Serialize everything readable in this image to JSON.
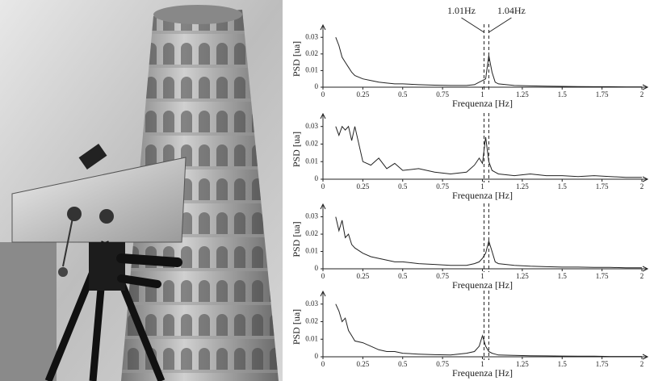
{
  "chart_data": [
    {
      "type": "line",
      "color": "#222",
      "xlim": [
        0,
        2
      ],
      "ylim": [
        0,
        0.034
      ],
      "xticks": [
        0,
        0.25,
        0.5,
        0.75,
        1,
        1.25,
        1.5,
        1.75,
        2
      ],
      "yticks": [
        0,
        0.01,
        0.02,
        0.03
      ],
      "xlabel": "Frequenza [Hz]",
      "ylabel": "PSD [ua]",
      "vlines": [
        1.01,
        1.04
      ],
      "annotations": [
        {
          "text": "1.01Hz",
          "x": 1.01
        },
        {
          "text": "1.04Hz",
          "x": 1.04
        }
      ],
      "x": [
        0.08,
        0.1,
        0.12,
        0.14,
        0.16,
        0.18,
        0.2,
        0.25,
        0.3,
        0.35,
        0.4,
        0.45,
        0.5,
        0.6,
        0.7,
        0.8,
        0.9,
        0.95,
        0.98,
        1.0,
        1.02,
        1.04,
        1.06,
        1.08,
        1.1,
        1.2,
        1.3,
        1.4,
        1.5,
        1.6,
        1.7,
        1.8,
        1.9,
        2
      ],
      "values": [
        0.03,
        0.025,
        0.018,
        0.015,
        0.012,
        0.009,
        0.007,
        0.005,
        0.004,
        0.003,
        0.0025,
        0.002,
        0.002,
        0.0015,
        0.0012,
        0.001,
        0.001,
        0.0015,
        0.003,
        0.004,
        0.005,
        0.019,
        0.009,
        0.003,
        0.002,
        0.001,
        0.0008,
        0.0006,
        0.0005,
        0.0004,
        0.0003,
        0.0003,
        0.0002,
        0.0002
      ]
    },
    {
      "type": "line",
      "color": "#222",
      "xlim": [
        0,
        2
      ],
      "ylim": [
        0,
        0.034
      ],
      "xticks": [
        0,
        0.25,
        0.5,
        0.75,
        1,
        1.25,
        1.5,
        1.75,
        2
      ],
      "yticks": [
        0,
        0.01,
        0.02,
        0.03
      ],
      "xlabel": "Frequenza [Hz]",
      "ylabel": "PSD [ua]",
      "vlines": [
        1.01,
        1.04
      ],
      "x": [
        0.08,
        0.1,
        0.12,
        0.14,
        0.16,
        0.18,
        0.2,
        0.25,
        0.3,
        0.35,
        0.4,
        0.45,
        0.5,
        0.6,
        0.7,
        0.8,
        0.9,
        0.95,
        0.98,
        1.0,
        1.02,
        1.04,
        1.06,
        1.08,
        1.1,
        1.2,
        1.3,
        1.4,
        1.5,
        1.6,
        1.7,
        1.8,
        1.9,
        2
      ],
      "values": [
        0.03,
        0.025,
        0.03,
        0.028,
        0.03,
        0.022,
        0.03,
        0.01,
        0.008,
        0.012,
        0.006,
        0.009,
        0.005,
        0.006,
        0.004,
        0.003,
        0.004,
        0.008,
        0.012,
        0.009,
        0.024,
        0.01,
        0.005,
        0.004,
        0.003,
        0.002,
        0.003,
        0.002,
        0.002,
        0.0015,
        0.002,
        0.0015,
        0.001,
        0.001
      ]
    },
    {
      "type": "line",
      "color": "#222",
      "xlim": [
        0,
        2
      ],
      "ylim": [
        0,
        0.034
      ],
      "xticks": [
        0,
        0.25,
        0.5,
        0.75,
        1,
        1.25,
        1.5,
        1.75,
        2
      ],
      "yticks": [
        0,
        0.01,
        0.02,
        0.03
      ],
      "xlabel": "Frequenza [Hz]",
      "ylabel": "PSD [ua]",
      "vlines": [
        1.01,
        1.04
      ],
      "x": [
        0.08,
        0.1,
        0.12,
        0.14,
        0.16,
        0.18,
        0.2,
        0.25,
        0.3,
        0.35,
        0.4,
        0.45,
        0.5,
        0.6,
        0.7,
        0.8,
        0.9,
        0.95,
        0.98,
        1.0,
        1.02,
        1.04,
        1.06,
        1.08,
        1.1,
        1.2,
        1.3,
        1.4,
        1.5,
        1.6,
        1.7,
        1.8,
        1.9,
        2
      ],
      "values": [
        0.03,
        0.022,
        0.028,
        0.018,
        0.02,
        0.014,
        0.012,
        0.009,
        0.007,
        0.006,
        0.005,
        0.004,
        0.004,
        0.003,
        0.0025,
        0.002,
        0.002,
        0.003,
        0.004,
        0.006,
        0.009,
        0.016,
        0.01,
        0.004,
        0.003,
        0.002,
        0.0015,
        0.0012,
        0.001,
        0.001,
        0.0008,
        0.0008,
        0.0006,
        0.0006
      ]
    },
    {
      "type": "line",
      "color": "#222",
      "xlim": [
        0,
        2
      ],
      "ylim": [
        0,
        0.034
      ],
      "xticks": [
        0,
        0.25,
        0.5,
        0.75,
        1,
        1.25,
        1.5,
        1.75,
        2
      ],
      "yticks": [
        0,
        0.01,
        0.02,
        0.03
      ],
      "xlabel": "Frequenza [Hz]",
      "ylabel": "PSD [ua]",
      "vlines": [
        1.01,
        1.04
      ],
      "x": [
        0.08,
        0.1,
        0.12,
        0.14,
        0.16,
        0.18,
        0.2,
        0.25,
        0.3,
        0.35,
        0.4,
        0.45,
        0.5,
        0.6,
        0.7,
        0.8,
        0.9,
        0.95,
        0.98,
        1.0,
        1.02,
        1.04,
        1.06,
        1.08,
        1.1,
        1.2,
        1.3,
        1.4,
        1.5,
        1.6,
        1.7,
        1.8,
        1.9,
        2
      ],
      "values": [
        0.03,
        0.026,
        0.02,
        0.022,
        0.015,
        0.012,
        0.009,
        0.008,
        0.006,
        0.004,
        0.003,
        0.003,
        0.002,
        0.0015,
        0.0012,
        0.001,
        0.002,
        0.003,
        0.006,
        0.012,
        0.006,
        0.003,
        0.002,
        0.0015,
        0.001,
        0.0008,
        0.0006,
        0.0005,
        0.0004,
        0.0003,
        0.0003,
        0.0002,
        0.0002,
        0.0002
      ]
    }
  ]
}
